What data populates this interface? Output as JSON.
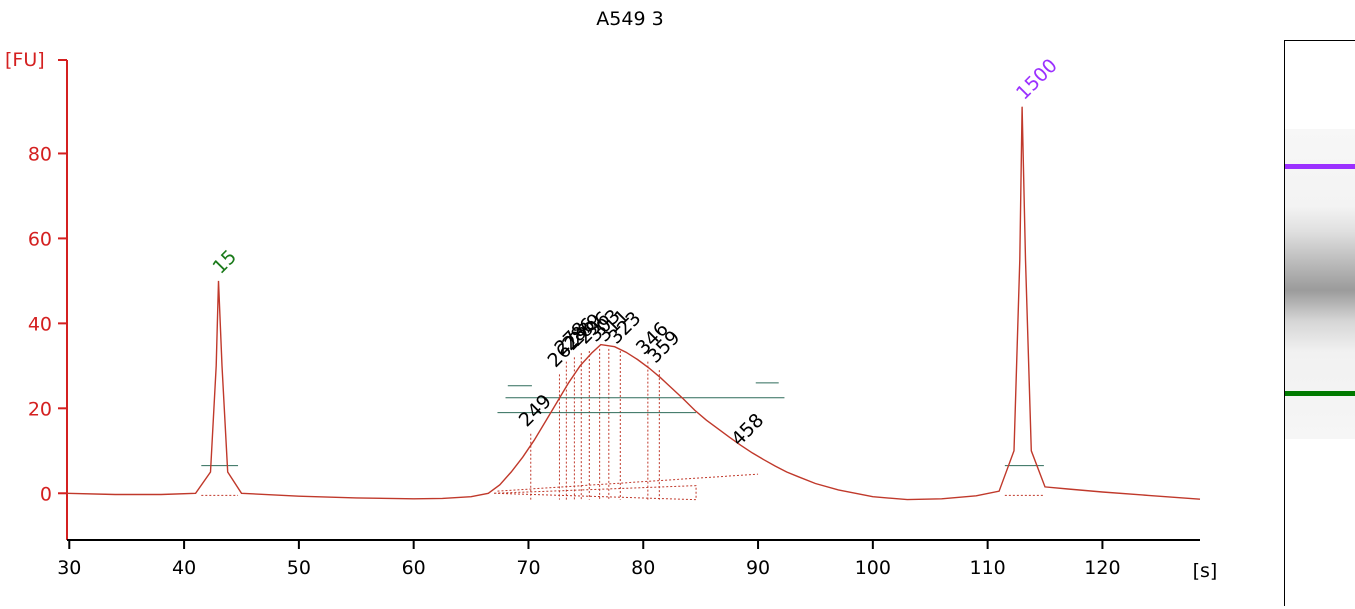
{
  "chart_data": {
    "type": "line",
    "title": "A549 3",
    "ylabel": "[FU]",
    "xlabel": "[s]",
    "xlim": [
      29.8,
      128.5
    ],
    "ylim": [
      -11,
      102
    ],
    "x_ticks": [
      30,
      40,
      50,
      60,
      70,
      80,
      90,
      100,
      110,
      120
    ],
    "y_ticks": [
      0,
      20,
      40,
      60,
      80
    ],
    "grid": false,
    "series": [
      {
        "color": "#c0392b",
        "x": [
          29.8,
          34,
          38,
          41,
          42.3,
          42.8,
          43.0,
          43.3,
          43.8,
          45,
          50,
          55,
          60,
          62.5,
          65,
          66.5,
          67.5,
          68.5,
          69.5,
          70.5,
          71.5,
          72.5,
          73.5,
          74.5,
          75.5,
          76.3,
          77.5,
          78.5,
          79.5,
          80.5,
          81.5,
          82.5,
          83.5,
          84.5,
          85.5,
          86.5,
          87.5,
          88.5,
          89.5,
          90.5,
          91.5,
          92.5,
          93.5,
          95,
          97,
          100,
          103,
          106,
          109,
          111,
          112.3,
          112.8,
          113.0,
          113.3,
          113.8,
          115,
          117,
          120,
          124,
          128.5
        ],
        "y": [
          0,
          -0.3,
          -0.3,
          0,
          5,
          30,
          50,
          30,
          5,
          0,
          -0.7,
          -1.1,
          -1.3,
          -1.2,
          -0.8,
          0,
          2,
          5,
          8.5,
          12.5,
          17,
          21.5,
          26,
          30,
          33,
          35,
          34.5,
          33.2,
          31.5,
          29.5,
          27.2,
          24.7,
          22.2,
          19.5,
          17.2,
          15.2,
          13.2,
          11.3,
          9.5,
          7.9,
          6.4,
          5,
          3.9,
          2.3,
          0.8,
          -0.8,
          -1.5,
          -1.3,
          -0.6,
          0.5,
          10,
          55,
          91,
          55,
          10,
          1.5,
          1,
          0.3,
          -0.5,
          -1.4
        ]
      }
    ],
    "marker_peaks": [
      {
        "label": "15",
        "x": 43.0,
        "y": 50,
        "color": "#1a7a1a"
      },
      {
        "label": "1500",
        "x": 113.0,
        "y": 91,
        "color": "#9b30ff"
      }
    ],
    "peak_labels": [
      {
        "label": "249",
        "x": 70.2,
        "y": 14
      },
      {
        "label": "262",
        "x": 72.7,
        "y": 28
      },
      {
        "label": "278",
        "x": 73.3,
        "y": 31
      },
      {
        "label": "286",
        "x": 74.0,
        "y": 32
      },
      {
        "label": "289",
        "x": 74.6,
        "y": 33
      },
      {
        "label": "296",
        "x": 75.3,
        "y": 33.5
      },
      {
        "label": "303",
        "x": 76.2,
        "y": 34
      },
      {
        "label": "311",
        "x": 77.0,
        "y": 34
      },
      {
        "label": "323",
        "x": 78.0,
        "y": 33.5
      },
      {
        "label": "346",
        "x": 80.4,
        "y": 31
      },
      {
        "label": "359",
        "x": 81.4,
        "y": 29
      },
      {
        "label": "458",
        "x": 88.7,
        "y": 9.5
      }
    ],
    "gel": {
      "upper_marker_color": "#9b30ff",
      "lower_marker_color": "#007a00"
    }
  }
}
